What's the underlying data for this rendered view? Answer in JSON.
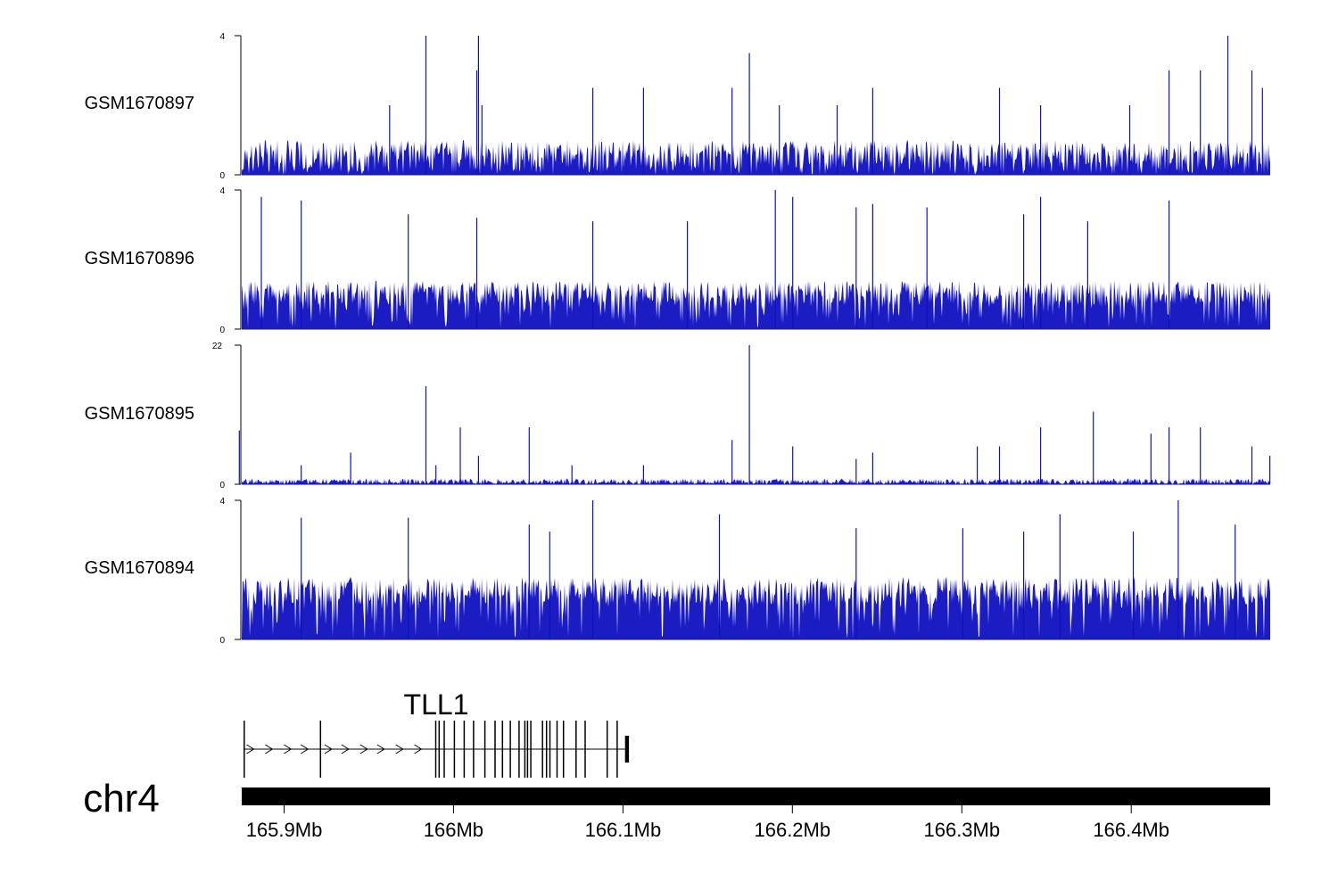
{
  "chart_data": {
    "type": "area",
    "chromosome": "chr4",
    "x_range_mb": [
      165.875,
      166.482
    ],
    "x_ticks": [
      {
        "pos_mb": 165.9,
        "label": "165.9Mb"
      },
      {
        "pos_mb": 166.0,
        "label": "166Mb"
      },
      {
        "pos_mb": 166.1,
        "label": "166.1Mb"
      },
      {
        "pos_mb": 166.2,
        "label": "166.2Mb"
      },
      {
        "pos_mb": 166.3,
        "label": "166.3Mb"
      },
      {
        "pos_mb": 166.4,
        "label": "166.4Mb"
      }
    ],
    "series_color": "#1010c0",
    "series": [
      {
        "name": "GSM1670897",
        "ylim": [
          0,
          4
        ],
        "ytick_labels": [
          "0",
          "4"
        ],
        "baseline": 0.5,
        "noise_max": 1.0,
        "density": 0.55,
        "peaks": [
          {
            "x_mb": 165.9837,
            "y": 4.0
          },
          {
            "x_mb": 166.0147,
            "y": 4.0
          },
          {
            "x_mb": 166.0137,
            "y": 3.0
          },
          {
            "x_mb": 166.0168,
            "y": 2.0
          },
          {
            "x_mb": 166.1746,
            "y": 3.5
          },
          {
            "x_mb": 166.1644,
            "y": 2.5
          },
          {
            "x_mb": 166.457,
            "y": 4.0
          },
          {
            "x_mb": 166.4712,
            "y": 3.0
          },
          {
            "x_mb": 166.4774,
            "y": 2.5
          },
          {
            "x_mb": 166.1121,
            "y": 2.5
          },
          {
            "x_mb": 166.0822,
            "y": 2.5
          },
          {
            "x_mb": 166.3222,
            "y": 2.5
          },
          {
            "x_mb": 166.4223,
            "y": 3.0
          },
          {
            "x_mb": 166.4408,
            "y": 3.0
          },
          {
            "x_mb": 166.2474,
            "y": 2.5
          },
          {
            "x_mb": 166.3465,
            "y": 2.0
          },
          {
            "x_mb": 166.3991,
            "y": 2.0
          },
          {
            "x_mb": 166.2264,
            "y": 2.0
          },
          {
            "x_mb": 165.9623,
            "y": 2.0
          },
          {
            "x_mb": 166.1923,
            "y": 2.0
          }
        ]
      },
      {
        "name": "GSM1670896",
        "ylim": [
          0,
          4
        ],
        "ytick_labels": [
          "0",
          "4"
        ],
        "baseline": 0.7,
        "noise_max": 1.4,
        "density": 0.8,
        "peaks": [
          {
            "x_mb": 165.8866,
            "y": 3.8
          },
          {
            "x_mb": 165.9101,
            "y": 3.7
          },
          {
            "x_mb": 166.1899,
            "y": 4.0
          },
          {
            "x_mb": 166.2002,
            "y": 3.8
          },
          {
            "x_mb": 166.2376,
            "y": 3.5
          },
          {
            "x_mb": 166.2474,
            "y": 3.6
          },
          {
            "x_mb": 166.2794,
            "y": 3.5
          },
          {
            "x_mb": 166.3365,
            "y": 3.3
          },
          {
            "x_mb": 166.3465,
            "y": 3.8
          },
          {
            "x_mb": 166.4223,
            "y": 3.7
          },
          {
            "x_mb": 166.3743,
            "y": 3.1
          },
          {
            "x_mb": 166.0137,
            "y": 3.2
          },
          {
            "x_mb": 165.9733,
            "y": 3.3
          },
          {
            "x_mb": 166.138,
            "y": 3.1
          },
          {
            "x_mb": 166.0822,
            "y": 3.1
          }
        ]
      },
      {
        "name": "GSM1670895",
        "ylim": [
          0,
          22
        ],
        "ytick_labels": [
          "0",
          "22"
        ],
        "baseline": 0.3,
        "noise_max": 0.9,
        "density": 0.6,
        "peaks": [
          {
            "x_mb": 166.1746,
            "y": 22.0
          },
          {
            "x_mb": 165.9837,
            "y": 15.5
          },
          {
            "x_mb": 166.3776,
            "y": 11.5
          },
          {
            "x_mb": 166.1644,
            "y": 7.0
          },
          {
            "x_mb": 166.4223,
            "y": 9.0
          },
          {
            "x_mb": 166.3465,
            "y": 9.0
          },
          {
            "x_mb": 166.4408,
            "y": 9.0
          },
          {
            "x_mb": 165.8736,
            "y": 8.5
          },
          {
            "x_mb": 166.004,
            "y": 9.0
          },
          {
            "x_mb": 166.0447,
            "y": 9.0
          },
          {
            "x_mb": 166.4116,
            "y": 8.0
          },
          {
            "x_mb": 166.4712,
            "y": 6.0
          },
          {
            "x_mb": 166.2002,
            "y": 6.0
          },
          {
            "x_mb": 166.0147,
            "y": 4.5
          },
          {
            "x_mb": 165.9393,
            "y": 5.0
          },
          {
            "x_mb": 166.4818,
            "y": 4.5
          },
          {
            "x_mb": 166.3222,
            "y": 6.0
          },
          {
            "x_mb": 166.2474,
            "y": 5.0
          },
          {
            "x_mb": 166.2376,
            "y": 4.0
          },
          {
            "x_mb": 166.3091,
            "y": 6.0
          },
          {
            "x_mb": 165.9896,
            "y": 3.0
          },
          {
            "x_mb": 166.0699,
            "y": 3.0
          },
          {
            "x_mb": 166.1121,
            "y": 3.0
          },
          {
            "x_mb": 165.9101,
            "y": 3.0
          }
        ]
      },
      {
        "name": "GSM1670894",
        "ylim": [
          0,
          4
        ],
        "ytick_labels": [
          "0",
          "4"
        ],
        "baseline": 1.0,
        "noise_max": 1.8,
        "density": 0.85,
        "peaks": [
          {
            "x_mb": 166.0822,
            "y": 4.0
          },
          {
            "x_mb": 166.4277,
            "y": 4.0
          },
          {
            "x_mb": 165.9101,
            "y": 3.5
          },
          {
            "x_mb": 165.9733,
            "y": 3.5
          },
          {
            "x_mb": 166.1569,
            "y": 3.6
          },
          {
            "x_mb": 166.3579,
            "y": 3.6
          },
          {
            "x_mb": 166.0447,
            "y": 3.3
          },
          {
            "x_mb": 166.2376,
            "y": 3.2
          },
          {
            "x_mb": 166.4613,
            "y": 3.3
          },
          {
            "x_mb": 166.0568,
            "y": 3.1
          },
          {
            "x_mb": 166.3006,
            "y": 3.2
          },
          {
            "x_mb": 166.3365,
            "y": 3.1
          },
          {
            "x_mb": 166.4012,
            "y": 3.1
          }
        ]
      }
    ],
    "gene": {
      "name": "TLL1",
      "start_mb": 165.876,
      "end_mb": 166.103,
      "strand": "+",
      "exons_mb": [
        165.8765,
        165.9215,
        165.9895,
        165.9915,
        165.9945,
        166.0005,
        166.0063,
        166.0118,
        166.0185,
        166.0245,
        166.0289,
        166.0335,
        166.0387,
        166.0421,
        166.0437,
        166.0456,
        166.0525,
        166.0549,
        166.0569,
        166.0611,
        166.0649,
        166.0723,
        166.0777,
        166.0907,
        166.0966
      ],
      "strand_arrows_mb": [
        165.88,
        165.891,
        165.902,
        165.912,
        165.926,
        165.936,
        165.947,
        165.957,
        165.968,
        165.979
      ],
      "last_exon_mb": [
        166.1012,
        166.1035
      ]
    }
  }
}
